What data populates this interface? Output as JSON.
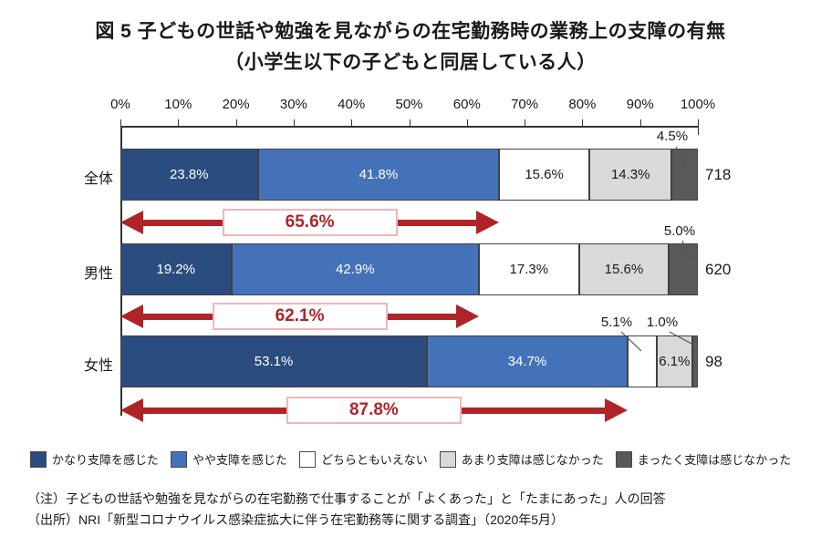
{
  "title": {
    "line1": "図 5 子どもの世話や勉強を見ながらの在宅勤務時の業務上の支障の有無",
    "line2": "（小学生以下の子どもと同居している人）"
  },
  "chart_data": {
    "type": "bar",
    "stacked": true,
    "orientation": "horizontal",
    "unit": "%",
    "axis": {
      "position": "top",
      "range": [
        0,
        100
      ],
      "ticks": [
        "0%",
        "10%",
        "20%",
        "30%",
        "40%",
        "50%",
        "60%",
        "70%",
        "80%",
        "90%",
        "100%"
      ]
    },
    "series": [
      {
        "name": "かなり支障を感じた",
        "color": "#2b4c7e",
        "label_color": "#ffffff"
      },
      {
        "name": "やや支障を感じた",
        "color": "#4472b8",
        "label_color": "#ffffff"
      },
      {
        "name": "どちらともいえない",
        "color": "#ffffff",
        "label_color": "#1a1a1a"
      },
      {
        "name": "あまり支障は感じなかった",
        "color": "#d9d9d9",
        "label_color": "#1a1a1a"
      },
      {
        "name": "まったく支障は感じなかった",
        "color": "#595959",
        "label_color": "#1a1a1a"
      }
    ],
    "rows": [
      {
        "category": "全体",
        "n": "718",
        "segments": [
          {
            "value": 23.8,
            "label": "23.8%"
          },
          {
            "value": 41.8,
            "label": "41.8%"
          },
          {
            "value": 15.6,
            "label": "15.6%"
          },
          {
            "value": 14.3,
            "label": "14.3%"
          },
          {
            "value": 4.5,
            "label": "4.5%"
          }
        ],
        "arrow": {
          "value": 65.6,
          "label": "65.6%"
        }
      },
      {
        "category": "男性",
        "n": "620",
        "segments": [
          {
            "value": 19.2,
            "label": "19.2%"
          },
          {
            "value": 42.9,
            "label": "42.9%"
          },
          {
            "value": 17.3,
            "label": "17.3%"
          },
          {
            "value": 15.6,
            "label": "15.6%"
          },
          {
            "value": 5.0,
            "label": "5.0%"
          }
        ],
        "arrow": {
          "value": 62.1,
          "label": "62.1%"
        }
      },
      {
        "category": "女性",
        "n": "98",
        "segments": [
          {
            "value": 53.1,
            "label": "53.1%"
          },
          {
            "value": 34.7,
            "label": "34.7%"
          },
          {
            "value": 5.1,
            "label": "5.1%"
          },
          {
            "value": 6.1,
            "label": "6.1%"
          },
          {
            "value": 1.0,
            "label": "1.0%"
          }
        ],
        "arrow": {
          "value": 87.8,
          "label": "87.8%"
        }
      }
    ]
  },
  "colors": {
    "arrow": "#b02428",
    "arrow_box_border": "#f0b6b8",
    "segment_border": "#404040",
    "axis": "#333333",
    "leader": "#555555"
  },
  "notes": {
    "note": "（注）子どもの世話や勉強を見ながらの在宅勤務で仕事することが「よくあった」と「たまにあった」人の回答",
    "source": "（出所）NRI「新型コロナウイルス感染症拡大に伴う在宅勤務等に関する調査」（2020年5月）"
  }
}
